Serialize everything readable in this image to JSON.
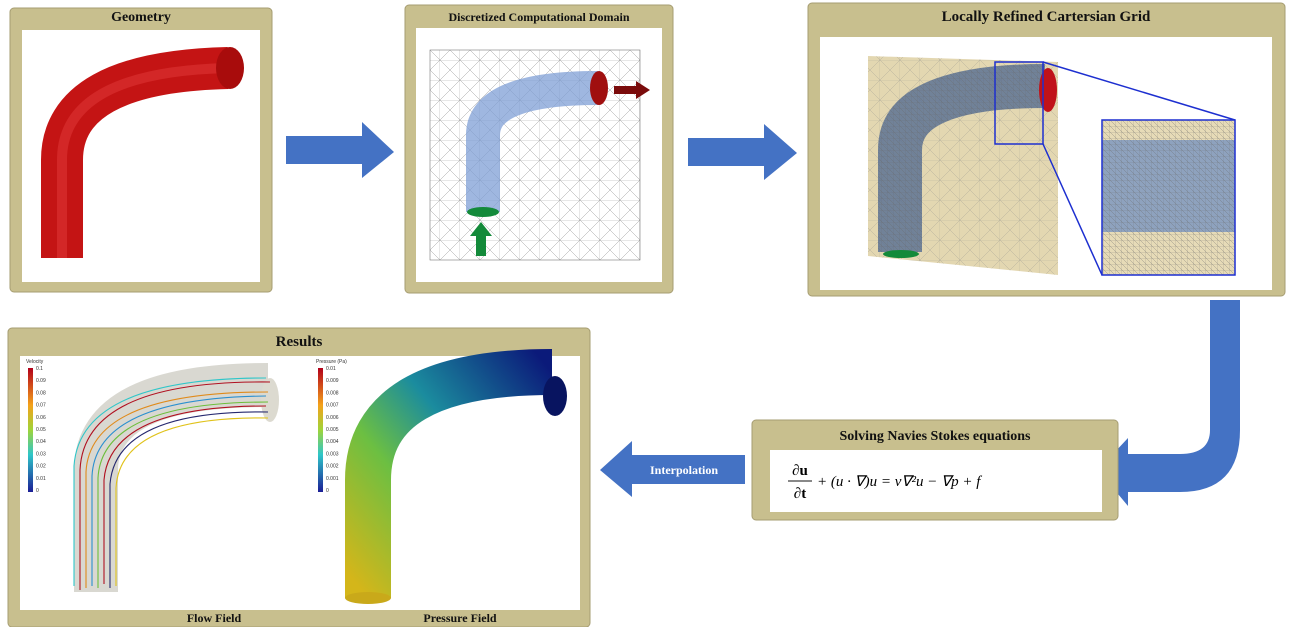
{
  "panels": {
    "geometry": {
      "title": "Geometry"
    },
    "domain": {
      "title": "Discretized Computational Domain"
    },
    "grid": {
      "title": "Locally Refined Cartersian Grid"
    },
    "solver": {
      "title": "Solving Navies Stokes equations",
      "equation": {
        "numerator": "∂u",
        "denominator": "∂t",
        "rest": "+ (u · ∇)u = ν∇²u − ∇p + f"
      }
    },
    "results": {
      "title": "Results",
      "flow": {
        "caption": "Flow Field",
        "colorbar_title": "Velocity",
        "colorbar_ticks": [
          "0.1",
          "0.09",
          "0.08",
          "0.07",
          "0.06",
          "0.05",
          "0.04",
          "0.03",
          "0.02",
          "0.01",
          "0"
        ]
      },
      "pressure": {
        "caption": "Pressure Field",
        "colorbar_title": "Pressure (Pa)",
        "colorbar_ticks": [
          "0.01",
          "0.009",
          "0.008",
          "0.007",
          "0.006",
          "0.005",
          "0.004",
          "0.003",
          "0.002",
          "0.001",
          "0"
        ]
      }
    }
  },
  "arrows": {
    "interpolation": "Interpolation"
  }
}
